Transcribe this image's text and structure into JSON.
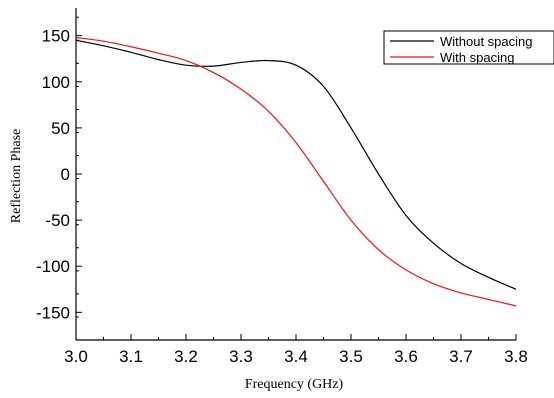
{
  "chart_data": {
    "type": "line",
    "xlabel": "Frequency (GHz)",
    "ylabel": "Reflection Phase",
    "xlim": [
      3.0,
      3.8
    ],
    "ylim": [
      -180,
      180
    ],
    "xticks": [
      3.0,
      3.1,
      3.2,
      3.3,
      3.4,
      3.5,
      3.6,
      3.7,
      3.8
    ],
    "yticks": [
      -150,
      -100,
      -50,
      0,
      50,
      100,
      150
    ],
    "xtick_labels": [
      "3.0",
      "3.1",
      "3.2",
      "3.3",
      "3.4",
      "3.5",
      "3.6",
      "3.7",
      "3.8"
    ],
    "ytick_labels": [
      "-150",
      "-100",
      "-50",
      "0",
      "50",
      "100",
      "150"
    ],
    "grid": false,
    "legend_position": "top-right",
    "series": [
      {
        "name": "Without spacing",
        "color": "#000000",
        "x": [
          3.0,
          3.05,
          3.1,
          3.15,
          3.2,
          3.25,
          3.3,
          3.35,
          3.4,
          3.45,
          3.5,
          3.55,
          3.6,
          3.65,
          3.7,
          3.75,
          3.8
        ],
        "y": [
          145,
          139,
          132,
          124,
          118,
          117,
          121,
          123,
          118,
          95,
          50,
          0,
          -45,
          -75,
          -97,
          -112,
          -125
        ]
      },
      {
        "name": "With spacing",
        "color": "#e8141a",
        "x": [
          3.0,
          3.05,
          3.1,
          3.15,
          3.2,
          3.25,
          3.3,
          3.35,
          3.4,
          3.45,
          3.5,
          3.55,
          3.6,
          3.65,
          3.7,
          3.75,
          3.8
        ],
        "y": [
          148,
          144,
          138,
          131,
          123,
          110,
          92,
          68,
          34,
          -8,
          -50,
          -82,
          -104,
          -119,
          -129,
          -136,
          -143
        ]
      }
    ]
  }
}
